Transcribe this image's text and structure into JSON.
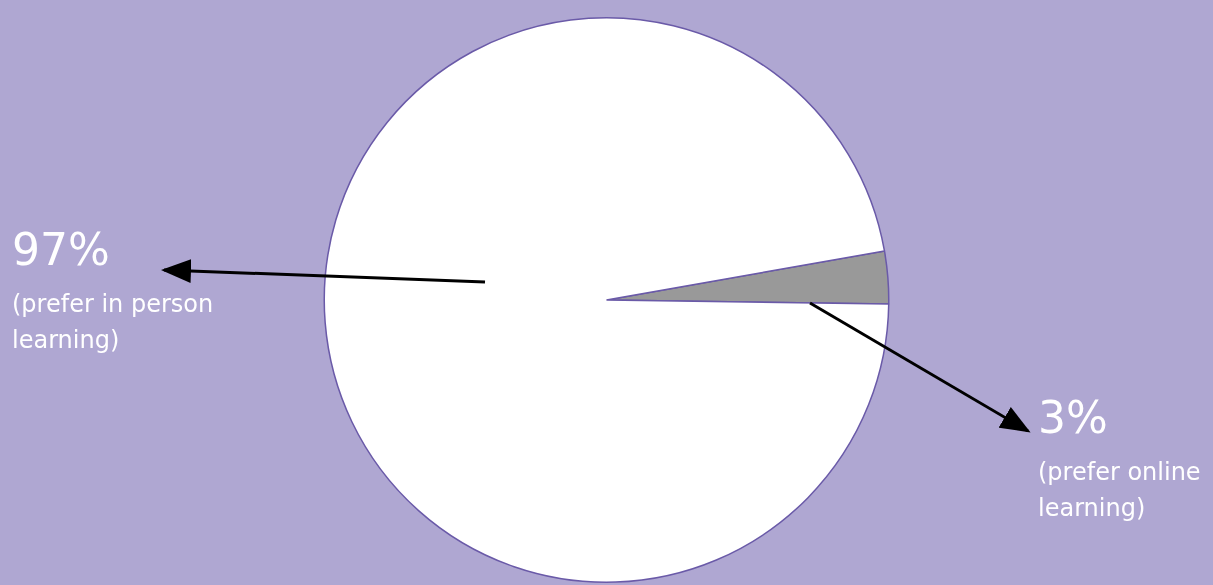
{
  "chart_data": {
    "type": "pie",
    "categories": [
      "(prefer online learning)",
      "(prefer in person learning)"
    ],
    "values": [
      3,
      97
    ],
    "colors": [
      "#999999",
      "#ffffff"
    ],
    "value_labels": [
      "3%",
      "97%"
    ],
    "legend": false
  }
}
